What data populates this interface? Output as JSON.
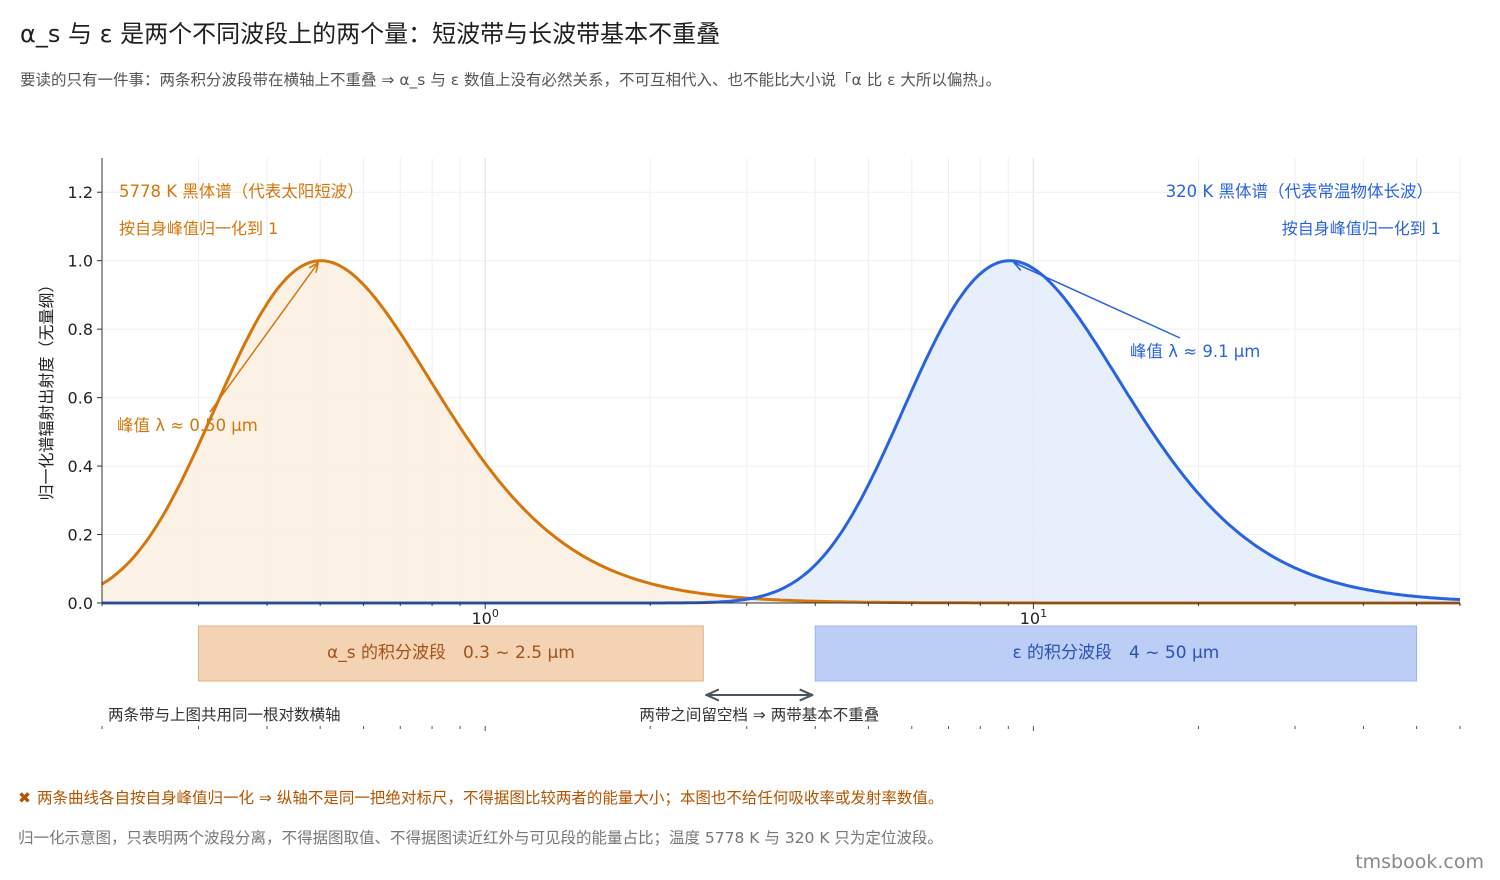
{
  "header": {
    "title": "α_s 与 ε 是两个不同波段上的两个量：短波带与长波带基本不重叠",
    "subtitle": "要读的只有一件事：两条积分波段带在横轴上不重叠 ⇒ α_s 与 ε 数值上没有必然关系，不可互相代入、也不能比大小说「α 比 ε 大所以偏热」。"
  },
  "chart_data": {
    "type": "line",
    "x_scale": "log",
    "xlim": [
      0.2,
      60
    ],
    "ylim": [
      0,
      1.3
    ],
    "ylabel": "归一化谱辐射出射度（无量纲）",
    "y_ticks": [
      "0.0",
      "0.2",
      "0.4",
      "0.6",
      "0.8",
      "1.0",
      "1.2"
    ],
    "x_tick_labels": [
      {
        "value": 1,
        "label": "10⁰"
      },
      {
        "value": 10,
        "label": "10¹"
      }
    ],
    "grid": true,
    "series": [
      {
        "name": "5778 K 黑体谱（代表太阳短波）",
        "note": "按自身峰值归一化到 1",
        "temperature_K": 5778,
        "peak_um": 0.5,
        "peak_label": "峰值 λ ≈ 0.50 μm",
        "color": "#d4760c",
        "fill": "#fbeee0"
      },
      {
        "name": "320 K 黑体谱（代表常温物体长波）",
        "note": "按自身峰值归一化到 1",
        "temperature_K": 320,
        "peak_um": 9.1,
        "peak_label": "峰值 λ ≈ 9.1 μm",
        "color": "#2a63e0",
        "fill": "#e3ecfb"
      }
    ],
    "bands": [
      {
        "label": "α_s 的积分波段　0.3 ~ 2.5 μm",
        "from_um": 0.3,
        "to_um": 2.5,
        "fill": "#f3d3b3",
        "stroke": "#e6b283",
        "text_color": "#a0521a"
      },
      {
        "label": "ε 的积分波段　4 ~ 50 μm",
        "from_um": 4,
        "to_um": 50,
        "fill": "#bccdf6",
        "stroke": "#9db6ef",
        "text_color": "#2a50b0"
      }
    ],
    "band_annotations": {
      "shared_axis": "两条带与上图共用同一根对数横轴",
      "gap": "两带之间留空档 ⇒ 两带基本不重叠"
    }
  },
  "footer": {
    "warning_icon": "✖",
    "warning": "两条曲线各自按自身峰值归一化 ⇒ 纵轴不是同一把绝对标尺，不得据图比较两者的能量大小；本图也不给任何吸收率或发射率数值。",
    "note": "归一化示意图，只表明两个波段分离，不得据图取值、不得据图读近红外与可见段的能量占比；温度 5778 K 与 320 K 只为定位波段。",
    "brand": "tmsbook.com"
  }
}
